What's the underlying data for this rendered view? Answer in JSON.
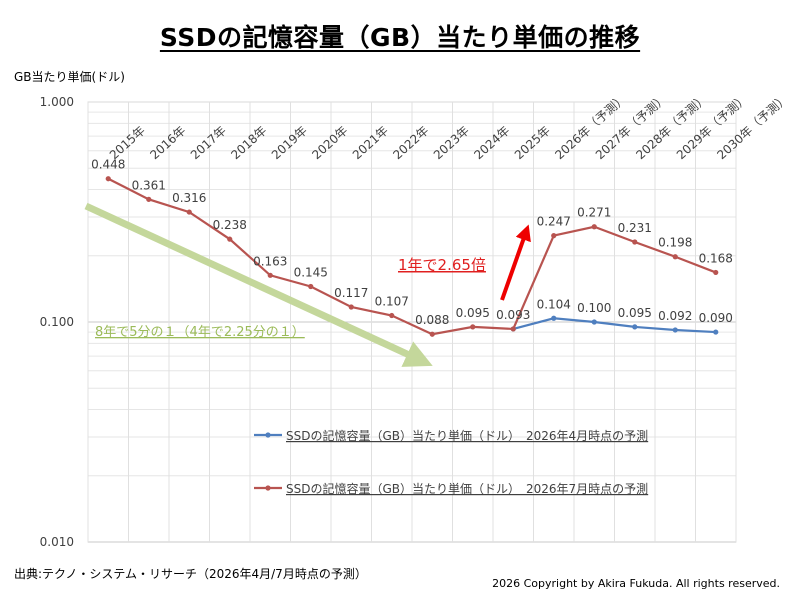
{
  "page": {
    "title": "SSDの記憶容量（GB）当たり単価の推移",
    "source": "出典:テクノ・システム・リサーチ（2026年4月/7月時点の予測）",
    "copyright": "2026 Copyright by Akira Fukuda.  All rights reserved."
  },
  "chart_data": {
    "type": "line",
    "title": "SSDの記憶容量（GB）当たり単価の推移",
    "ylabel": "GB当たり単価(ドル)",
    "xlabel": "",
    "yscale": "log",
    "ylim": [
      0.01,
      1.0
    ],
    "yticks": [
      "1.000",
      "0.100",
      "0.010"
    ],
    "grid": true,
    "legend_position": "bottom-right",
    "categories": [
      "2015年",
      "2016年",
      "2017年",
      "2018年",
      "2019年",
      "2020年",
      "2021年",
      "2022年",
      "2023年",
      "2024年",
      "2025年",
      "2026年（予測）",
      "2027年（予測）",
      "2028年（予測）",
      "2029年（予測）",
      "2030年（予測）"
    ],
    "series": [
      {
        "name": "SSDの記憶容量（GB）当たり単価（ドル）　2026年4月時点の予測",
        "color": "#4f7fbf",
        "values": [
          null,
          null,
          null,
          null,
          null,
          null,
          null,
          null,
          null,
          null,
          0.093,
          0.104,
          0.1,
          0.095,
          0.092,
          0.09
        ],
        "labels": [
          "",
          "",
          "",
          "",
          "",
          "",
          "",
          "",
          "",
          "",
          "",
          "0.104",
          "0.100",
          "0.095",
          "0.092",
          "0.090"
        ]
      },
      {
        "name": "SSDの記憶容量（GB）当たり単価（ドル）　2026年7月時点の予測",
        "color": "#b85450",
        "values": [
          0.448,
          0.361,
          0.316,
          0.238,
          0.163,
          0.145,
          0.117,
          0.107,
          0.088,
          0.095,
          0.093,
          0.247,
          0.271,
          0.231,
          0.198,
          0.168
        ],
        "labels": [
          "0.448",
          "0.361",
          "0.316",
          "0.238",
          "0.163",
          "0.145",
          "0.117",
          "0.107",
          "0.088",
          "0.095",
          "0.093",
          "0.247",
          "0.271",
          "0.231",
          "0.198",
          "0.168"
        ]
      }
    ],
    "annotations": [
      {
        "text": "8年で5分の１（4年で2.25分の１）",
        "color": "#9bbb59"
      },
      {
        "text": "1年で2.65倍",
        "color": "#e02020"
      }
    ]
  }
}
